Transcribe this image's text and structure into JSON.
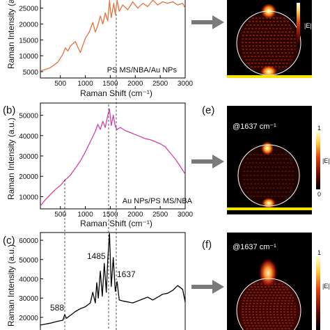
{
  "colors": {
    "panel_a": "#e8703a",
    "panel_b": "#d63fa8",
    "panel_c": "#000000",
    "arrow": "#7a7a7a",
    "substrate": "#f4e400",
    "field_dark": "#000000",
    "field_hot": "#ffe070"
  },
  "panels": {
    "a": {
      "letter": "",
      "inset": "PS MS/NBA/Au NPs",
      "xlabel": "Raman Shift (cm⁻¹)",
      "ylabel": "Raman Intensity (a.u.)",
      "xticks": [
        "500",
        "1000",
        "1500",
        "2000",
        "2500",
        "3000"
      ],
      "yticks": [
        "5000",
        "10000",
        "15000",
        "20000",
        "25000"
      ]
    },
    "b": {
      "letter": "(b)",
      "inset": "Au NPs/PS MS/NBA",
      "xlabel": "Raman Shift (cm⁻¹)",
      "ylabel": "Raman Intensity (a.u.)",
      "xticks": [
        "500",
        "1000",
        "1500",
        "2000",
        "2500",
        "3000"
      ],
      "yticks": [
        "10000",
        "20000",
        "30000",
        "40000",
        "50000"
      ]
    },
    "c": {
      "letter": "(c)",
      "ylabel": "Raman Intensity (a.u.)",
      "yticks": [
        "20000",
        "30000",
        "40000",
        "50000",
        "60000"
      ],
      "peaks": [
        "588",
        "1485",
        "1637"
      ]
    }
  },
  "fields": {
    "d": {
      "letter": "",
      "caption": "",
      "colorbar_label": "|E|"
    },
    "e": {
      "letter": "(e)",
      "caption": "@1637 cm⁻¹",
      "colorbar_label": "|E|",
      "cb_top": "1",
      "cb_bottom": "0"
    },
    "f": {
      "letter": "(f)",
      "caption": "@1637 cm⁻¹",
      "colorbar_label": "|E|",
      "cb_top": "1"
    }
  },
  "chart_data": [
    {
      "type": "line",
      "panel": "a",
      "xlim": [
        100,
        3000
      ],
      "ylim": [
        3000,
        28000
      ],
      "series": [
        {
          "x": [
            100,
            300,
            450,
            550,
            600,
            650,
            700,
            800,
            900,
            1000,
            1080,
            1150,
            1200,
            1250,
            1300,
            1350,
            1400,
            1450,
            1485,
            1520,
            1570,
            1600,
            1637,
            1680,
            1750,
            1850,
            1950,
            2050,
            2150,
            2250,
            2350,
            2450,
            2550,
            2650,
            2750,
            2850,
            2950,
            3000
          ],
          "y": [
            5200,
            6200,
            8000,
            10500,
            12500,
            11500,
            13000,
            14500,
            11000,
            15500,
            17500,
            20500,
            17500,
            19500,
            22500,
            20000,
            23500,
            21000,
            27500,
            22000,
            26500,
            23000,
            27500,
            24000,
            26000,
            24500,
            27000,
            25000,
            26500,
            25500,
            27500,
            26000,
            27000,
            26500,
            27000,
            26000,
            26500,
            25000
          ]
        }
      ]
    },
    {
      "type": "line",
      "panel": "b",
      "xlim": [
        100,
        3000
      ],
      "ylim": [
        4000,
        56000
      ],
      "series": [
        {
          "x": [
            100,
            200,
            300,
            400,
            500,
            588,
            700,
            800,
            900,
            1000,
            1100,
            1200,
            1250,
            1300,
            1350,
            1400,
            1450,
            1485,
            1520,
            1560,
            1600,
            1637,
            1700,
            1800,
            1900,
            2000,
            2100,
            2200,
            2300,
            2400,
            2500,
            2600,
            2700,
            2800,
            2900,
            3000
          ],
          "y": [
            5500,
            8500,
            11000,
            13500,
            15500,
            18000,
            20500,
            24000,
            27500,
            32000,
            37000,
            42000,
            45500,
            43000,
            47000,
            44000,
            50000,
            53000,
            45000,
            50000,
            44500,
            43000,
            44000,
            42500,
            41500,
            40500,
            39500,
            38500,
            38000,
            37000,
            36000,
            34500,
            31500,
            28500,
            25000,
            21000
          ]
        }
      ]
    },
    {
      "type": "line",
      "panel": "c",
      "xlim": [
        100,
        3000
      ],
      "ylim": [
        12000,
        64000
      ],
      "series": [
        {
          "x": [
            100,
            300,
            450,
            550,
            588,
            620,
            700,
            800,
            900,
            1000,
            1100,
            1150,
            1200,
            1230,
            1260,
            1300,
            1340,
            1380,
            1420,
            1450,
            1485,
            1520,
            1560,
            1600,
            1637,
            1680,
            1750,
            1850,
            1950,
            2050,
            2150,
            2250,
            2350,
            2450,
            2550,
            2650,
            2750,
            2850,
            2950,
            3000
          ],
          "y": [
            16000,
            17000,
            18000,
            18500,
            21500,
            19500,
            21000,
            23000,
            24500,
            25500,
            27500,
            33000,
            27500,
            38000,
            30000,
            44000,
            31000,
            48000,
            33000,
            50000,
            63500,
            36000,
            51000,
            33500,
            38500,
            29000,
            28500,
            28000,
            27500,
            28500,
            29500,
            30500,
            29000,
            30500,
            32000,
            32500,
            34000,
            36500,
            34500,
            28000
          ]
        }
      ]
    }
  ]
}
